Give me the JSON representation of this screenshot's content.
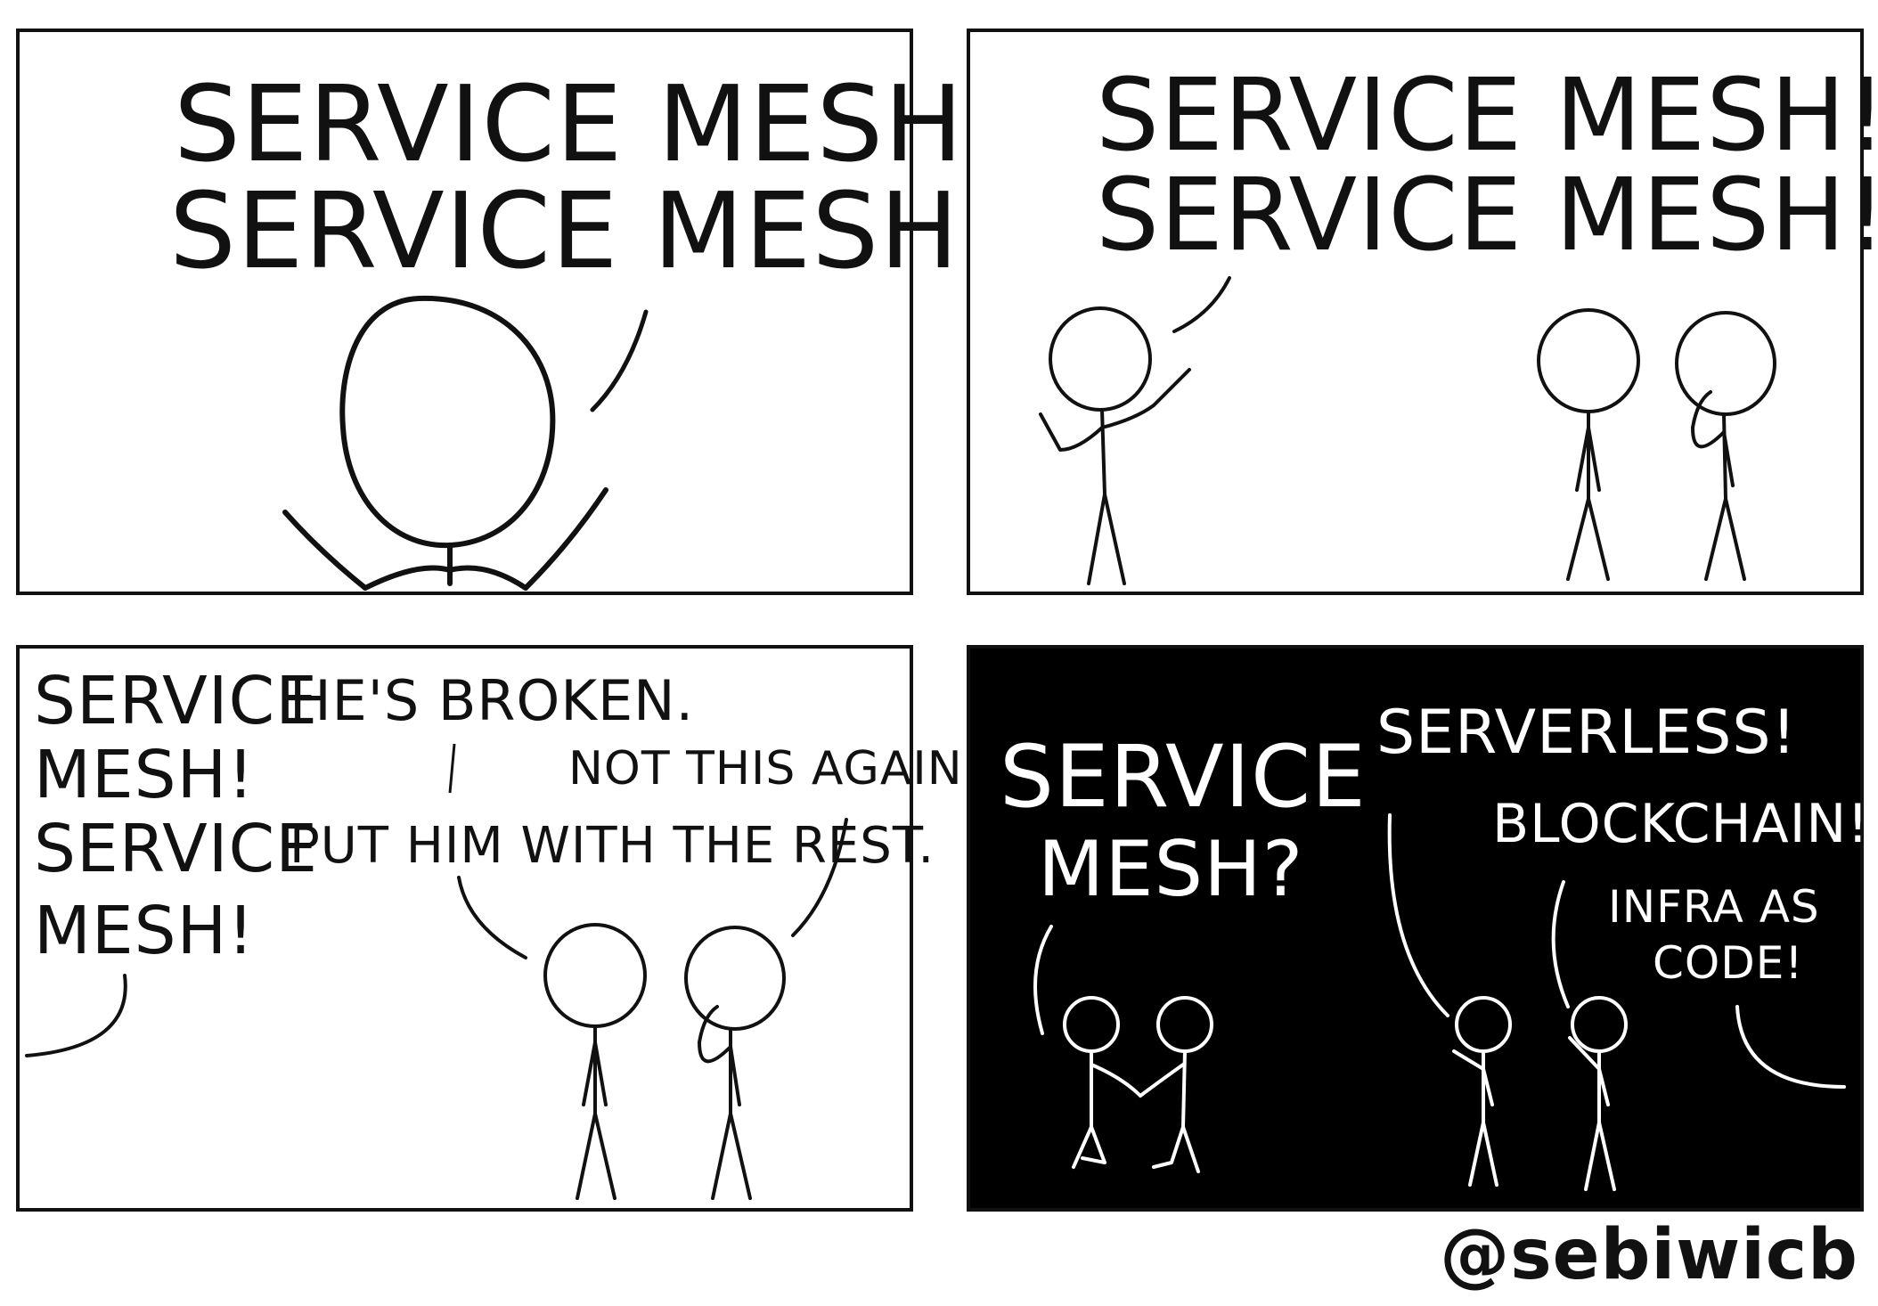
{
  "panels": [
    {
      "lines": [
        "SERVICE MESH!",
        "SERVICE MESH!"
      ]
    },
    {
      "lines": [
        "SERVICE MESH!",
        "SERVICE MESH!"
      ]
    },
    {
      "shout": [
        "SERVICE",
        "MESH!",
        "SERVICE",
        "MESH!"
      ],
      "broken": "HE'S BROKEN.",
      "again": "NOT THIS AGAIN.",
      "rest": "PUT HIM WITH THE REST."
    },
    {
      "question": [
        "SERVICE",
        "MESH?"
      ],
      "serverless": "SERVERLESS!",
      "blockchain": "BLOCKCHAIN!",
      "infra": [
        "INFRA AS",
        "CODE!"
      ]
    }
  ],
  "credit": "@sebiwicb",
  "colors": {
    "ink": "#111111",
    "paper": "#ffffff",
    "night": "#000000"
  }
}
